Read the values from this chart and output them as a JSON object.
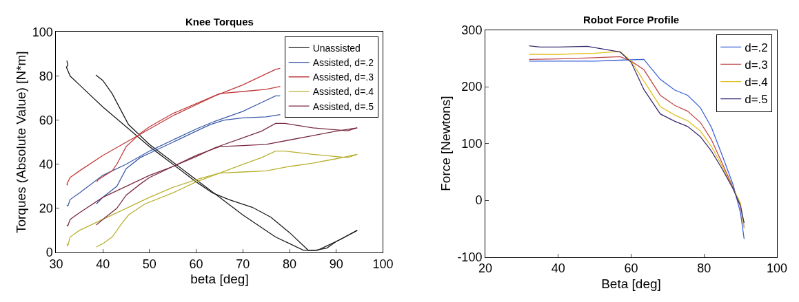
{
  "chart_data": [
    {
      "type": "line",
      "title": "Knee Torques",
      "xlabel": "beta [deg]",
      "ylabel": "Torques (Absolute Value) [N*m]",
      "xlim": [
        30,
        100
      ],
      "xticks": [
        30,
        40,
        50,
        60,
        70,
        80,
        90,
        100
      ],
      "ylim": [
        0,
        100
      ],
      "yticks": [
        0,
        20,
        40,
        60,
        80,
        100
      ],
      "legend": "top right",
      "line_style": "solid",
      "marker": "none",
      "series": [
        {
          "name": "Unassisted",
          "color": "#1a1a1a",
          "x": [
            32.3,
            32.5,
            32.2,
            33,
            35,
            40,
            45,
            50,
            55,
            60,
            63.5,
            67,
            72,
            76,
            80,
            84,
            86,
            88,
            91,
            94.5
          ],
          "values": [
            87,
            85,
            84,
            80,
            76,
            66,
            57,
            48,
            40,
            32,
            27,
            24,
            20.5,
            16,
            9,
            1,
            1,
            3,
            6,
            10
          ]
        },
        {
          "color": "#1a1a1a",
          "x": [
            38.5,
            40,
            42,
            44,
            45.5,
            50,
            55,
            60,
            65,
            70,
            77,
            80,
            83,
            85.5,
            88,
            90,
            94.5
          ],
          "values": [
            80.5,
            78,
            72,
            64,
            58,
            49,
            41,
            33,
            25,
            17,
            7,
            4,
            1,
            1,
            2,
            5,
            10
          ]
        },
        {
          "name": "Assisted, d=.2",
          "color": "#3a5aa8",
          "x": [
            32.3,
            32.5,
            33,
            35,
            40,
            45,
            50,
            55,
            60,
            64,
            70,
            74,
            77,
            78
          ],
          "values": [
            21.5,
            21,
            24,
            27,
            35,
            40,
            46,
            51,
            56,
            59.5,
            64,
            68,
            71,
            71
          ]
        },
        {
          "color": "#3a5aa8",
          "x": [
            38.6,
            40,
            43,
            45,
            48,
            50,
            55,
            60,
            63,
            66,
            70,
            75,
            78
          ],
          "values": [
            22,
            25,
            30,
            38,
            43,
            45,
            50,
            55,
            58,
            60,
            61,
            61.5,
            62.5
          ]
        },
        {
          "name": "Assisted, d=.3",
          "color": "#c0393b",
          "x": [
            32.5,
            32.3,
            33,
            35,
            40,
            45,
            50,
            55,
            60,
            64,
            70,
            77,
            78
          ],
          "values": [
            30.5,
            31,
            34,
            37,
            44,
            50,
            56,
            62,
            67,
            71,
            76,
            83,
            83.5
          ]
        },
        {
          "color": "#c0393b",
          "x": [
            38.7,
            39,
            42,
            43,
            45,
            48,
            50,
            55,
            60,
            65,
            70,
            75,
            78
          ],
          "values": [
            32,
            33,
            37,
            40,
            48,
            54,
            57,
            63,
            67.5,
            72,
            73,
            74,
            75.3
          ]
        },
        {
          "name": "Assisted, d=.4",
          "color": "#b8b030",
          "x": [
            32.3,
            32.5,
            33,
            35,
            40,
            45,
            50,
            55,
            60,
            65,
            70,
            74,
            77,
            79,
            85,
            92.4,
            94.5
          ],
          "values": [
            4,
            3,
            7,
            10,
            15,
            20,
            25,
            29.5,
            33,
            36,
            40,
            43,
            46,
            46,
            44.5,
            43,
            44.5
          ]
        },
        {
          "color": "#b8b030",
          "x": [
            38.6,
            40,
            42,
            44,
            45.5,
            49,
            55,
            60,
            65,
            70,
            75,
            80,
            85,
            90,
            94.5
          ],
          "values": [
            2.5,
            4,
            7,
            13,
            17,
            22,
            27,
            32,
            36,
            36.5,
            37,
            39,
            40.5,
            42.5,
            44.5
          ]
        },
        {
          "name": "Assisted, d=.5",
          "color": "#7a2a40",
          "x": [
            32.3,
            32.5,
            33,
            35,
            40,
            45,
            50,
            55,
            60,
            64,
            70,
            74,
            77,
            79,
            85,
            92.4,
            94.5
          ],
          "values": [
            12.5,
            12,
            15,
            18,
            25,
            30,
            35,
            39,
            43.5,
            47.5,
            52,
            55,
            58.5,
            58.5,
            56.5,
            55.2,
            56.5
          ]
        },
        {
          "color": "#7a2a40",
          "x": [
            38.6,
            40,
            43,
            45,
            48,
            50,
            55,
            60,
            65,
            70,
            75,
            80,
            85,
            90,
            94.5
          ],
          "values": [
            12.5,
            15,
            20,
            26,
            31,
            34,
            39,
            44,
            48,
            48.5,
            49,
            51,
            53,
            55,
            56.5
          ]
        }
      ]
    },
    {
      "type": "line",
      "title": "Robot Force Profile",
      "xlabel": "Beta [deg]",
      "ylabel": "Force [Newtons]",
      "xlim": [
        20,
        100
      ],
      "xticks": [
        20,
        40,
        60,
        80,
        100
      ],
      "ylim": [
        -100,
        300
      ],
      "yticks": [
        -100,
        0,
        100,
        200,
        300
      ],
      "legend": "top right",
      "line_style": "solid",
      "marker": "none",
      "series": [
        {
          "name": "d=.2",
          "color": "#3a62d8",
          "x": [
            32,
            40,
            50,
            58,
            63.5,
            68,
            72,
            75.5,
            79,
            82,
            85,
            88,
            90,
            91
          ],
          "values": [
            245,
            245,
            245,
            247,
            248,
            213,
            194,
            185,
            163,
            129,
            79,
            27,
            -22,
            -68
          ]
        },
        {
          "name": "d=.3",
          "color": "#c04848",
          "x": [
            32,
            40,
            50,
            57,
            60,
            63.5,
            68,
            72,
            75.5,
            79,
            82,
            85,
            88,
            90,
            91
          ],
          "values": [
            248,
            249,
            251,
            253,
            245,
            230,
            185,
            167,
            157,
            137,
            107,
            65,
            22,
            -10,
            -48
          ]
        },
        {
          "name": "d=.4",
          "color": "#e0c020",
          "x": [
            32,
            40,
            50,
            57,
            60,
            63.5,
            68,
            72,
            75.5,
            79,
            82,
            85,
            88,
            90,
            91
          ],
          "values": [
            257,
            257,
            259,
            262,
            245,
            210,
            165,
            150,
            140,
            122,
            95,
            60,
            20,
            -5,
            -50
          ]
        },
        {
          "name": "d=.5",
          "color": "#3a2a70",
          "x": [
            32,
            35,
            40,
            48,
            57,
            60,
            63.5,
            68,
            72,
            75.5,
            79,
            82,
            85,
            88,
            90,
            91
          ],
          "values": [
            272,
            270,
            270,
            271,
            261,
            243,
            195,
            152,
            139,
            130,
            112,
            87,
            55,
            20,
            -10,
            -40
          ]
        }
      ]
    }
  ]
}
